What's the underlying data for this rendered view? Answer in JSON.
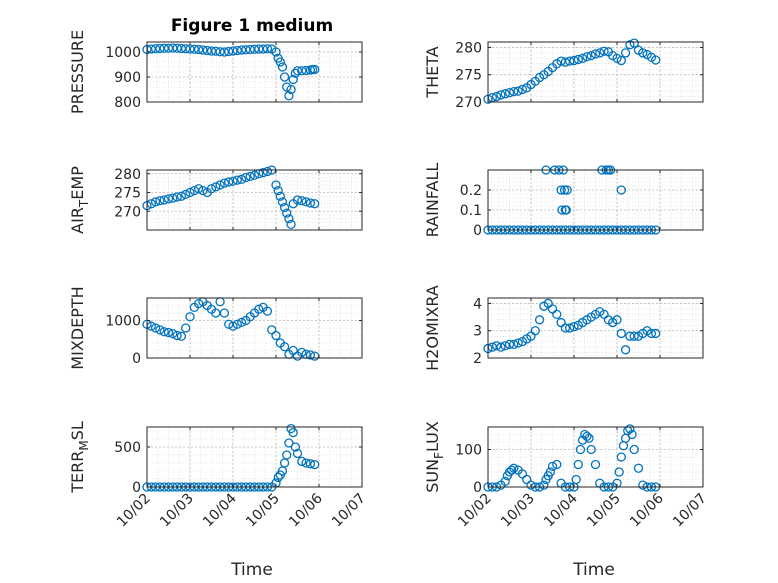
{
  "figure": {
    "title": "Figure 1 medium",
    "xlabel": "Time",
    "date_ticks": [
      "10/02",
      "10/03",
      "10/04",
      "10/05",
      "10/06",
      "10/07"
    ],
    "marker_color": "#0072BD"
  },
  "chart_data": [
    {
      "type": "scatter",
      "title": "Figure 1 medium",
      "ylabel": "PRESSURE",
      "ylabel_main": "PRESSURE",
      "ylabel_sub": "",
      "ylabel_tail": "",
      "xlim": [
        "10/02",
        "10/07"
      ],
      "ylim": [
        800,
        1040
      ],
      "yticks": [
        800,
        900,
        1000
      ],
      "grid": true,
      "x": [
        2.0,
        2.1,
        2.2,
        2.3,
        2.4,
        2.5,
        2.6,
        2.7,
        2.8,
        2.9,
        3.0,
        3.1,
        3.2,
        3.3,
        3.4,
        3.5,
        3.6,
        3.7,
        3.8,
        3.9,
        4.0,
        4.1,
        4.2,
        4.3,
        4.4,
        4.5,
        4.6,
        4.7,
        4.8,
        4.9,
        5.0,
        5.05,
        5.1,
        5.15,
        5.2,
        5.25,
        5.3,
        5.35,
        5.4,
        5.45,
        5.5,
        5.6,
        5.7,
        5.8,
        5.85,
        5.9
      ],
      "y": [
        1010,
        1012,
        1013,
        1014,
        1015,
        1015,
        1016,
        1015,
        1014,
        1013,
        1012,
        1011,
        1010,
        1008,
        1006,
        1004,
        1003,
        1001,
        1000,
        1002,
        1004,
        1006,
        1008,
        1009,
        1010,
        1011,
        1012,
        1012,
        1013,
        1012,
        1000,
        975,
        960,
        940,
        900,
        860,
        825,
        850,
        890,
        915,
        925,
        925,
        926,
        928,
        930,
        930
      ]
    },
    {
      "type": "scatter",
      "ylabel": "THETA",
      "ylabel_main": "THETA",
      "ylabel_sub": "",
      "ylabel_tail": "",
      "xlim": [
        "10/02",
        "10/07"
      ],
      "ylim": [
        270,
        281
      ],
      "yticks": [
        270,
        275,
        280
      ],
      "grid": true,
      "x": [
        2.0,
        2.1,
        2.2,
        2.3,
        2.4,
        2.5,
        2.6,
        2.7,
        2.8,
        2.9,
        3.0,
        3.1,
        3.2,
        3.3,
        3.4,
        3.5,
        3.6,
        3.7,
        3.8,
        3.9,
        4.0,
        4.1,
        4.2,
        4.3,
        4.4,
        4.5,
        4.6,
        4.7,
        4.8,
        4.9,
        5.0,
        5.1,
        5.2,
        5.3,
        5.4,
        5.5,
        5.6,
        5.7,
        5.8,
        5.9
      ],
      "y": [
        270.5,
        270.8,
        271.0,
        271.3,
        271.5,
        271.7,
        271.9,
        272.0,
        272.3,
        272.6,
        273.2,
        273.8,
        274.5,
        275.0,
        275.6,
        276.3,
        277.0,
        277.5,
        277.3,
        277.5,
        277.6,
        277.8,
        278.0,
        278.3,
        278.5,
        278.8,
        279.0,
        279.3,
        279.2,
        278.5,
        278.0,
        277.6,
        279.0,
        280.5,
        280.8,
        279.5,
        279.0,
        278.7,
        278.2,
        277.7
      ]
    },
    {
      "type": "scatter",
      "ylabel": "AIR_TEMP",
      "ylabel_main": "AIR",
      "ylabel_sub": "T",
      "ylabel_tail": "EMP",
      "xlim": [
        "10/02",
        "10/07"
      ],
      "ylim": [
        265,
        281
      ],
      "yticks": [
        270,
        275,
        280
      ],
      "grid": true,
      "x": [
        2.0,
        2.1,
        2.2,
        2.3,
        2.4,
        2.5,
        2.6,
        2.7,
        2.8,
        2.9,
        3.0,
        3.1,
        3.2,
        3.3,
        3.4,
        3.5,
        3.6,
        3.7,
        3.8,
        3.9,
        4.0,
        4.1,
        4.2,
        4.3,
        4.4,
        4.5,
        4.6,
        4.7,
        4.8,
        4.9,
        5.0,
        5.05,
        5.1,
        5.15,
        5.2,
        5.25,
        5.3,
        5.35,
        5.4,
        5.5,
        5.6,
        5.7,
        5.8,
        5.9
      ],
      "y": [
        271.5,
        272.0,
        272.5,
        272.8,
        273.0,
        273.3,
        273.5,
        273.8,
        274.0,
        274.5,
        275.0,
        275.5,
        276.0,
        275.5,
        275.0,
        276.0,
        276.5,
        277.0,
        277.5,
        277.8,
        278.0,
        278.3,
        278.5,
        279.0,
        279.3,
        279.6,
        280.0,
        280.3,
        280.6,
        281.0,
        277.0,
        275.5,
        274.0,
        272.5,
        271.0,
        269.5,
        268.0,
        266.5,
        272.0,
        273.0,
        272.8,
        272.5,
        272.2,
        272.0
      ]
    },
    {
      "type": "scatter",
      "ylabel": "RAINFALL",
      "ylabel_main": "RAINFALL",
      "ylabel_sub": "",
      "ylabel_tail": "",
      "xlim": [
        "10/02",
        "10/07"
      ],
      "ylim": [
        0,
        0.3
      ],
      "yticks": [
        0,
        0.1,
        0.2
      ],
      "grid": true,
      "x": [
        2.0,
        2.1,
        2.2,
        2.3,
        2.4,
        2.5,
        2.6,
        2.7,
        2.8,
        2.9,
        3.0,
        3.1,
        3.2,
        3.3,
        3.4,
        3.5,
        3.6,
        3.7,
        3.8,
        3.9,
        4.0,
        4.1,
        4.2,
        4.3,
        4.4,
        4.5,
        4.6,
        4.7,
        4.8,
        4.9,
        5.0,
        5.1,
        5.2,
        5.3,
        5.4,
        5.5,
        5.6,
        5.7,
        5.8,
        5.9,
        3.35,
        3.55,
        3.65,
        3.7,
        3.72,
        3.75,
        3.78,
        3.8,
        3.82,
        3.84,
        4.65,
        4.75,
        4.8,
        4.85,
        5.1
      ],
      "y": [
        0,
        0,
        0,
        0,
        0,
        0,
        0,
        0,
        0,
        0,
        0,
        0,
        0,
        0,
        0,
        0,
        0,
        0,
        0,
        0,
        0,
        0,
        0,
        0,
        0,
        0,
        0,
        0,
        0,
        0,
        0,
        0,
        0,
        0,
        0,
        0,
        0,
        0,
        0,
        0,
        0.3,
        0.3,
        0.3,
        0.2,
        0.1,
        0.3,
        0.2,
        0.1,
        0.1,
        0.2,
        0.3,
        0.3,
        0.3,
        0.3,
        0.2
      ]
    },
    {
      "type": "scatter",
      "ylabel": "MIXDEPTH",
      "ylabel_main": "MIXDEPTH",
      "ylabel_sub": "",
      "ylabel_tail": "",
      "xlim": [
        "10/02",
        "10/07"
      ],
      "ylim": [
        0,
        1600
      ],
      "yticks": [
        0,
        1000
      ],
      "grid": true,
      "x": [
        2.0,
        2.1,
        2.2,
        2.3,
        2.4,
        2.5,
        2.6,
        2.7,
        2.8,
        2.9,
        3.0,
        3.1,
        3.2,
        3.3,
        3.4,
        3.5,
        3.6,
        3.7,
        3.8,
        3.9,
        4.0,
        4.1,
        4.2,
        4.3,
        4.4,
        4.5,
        4.6,
        4.7,
        4.8,
        4.9,
        5.0,
        5.1,
        5.2,
        5.3,
        5.4,
        5.5,
        5.6,
        5.7,
        5.8,
        5.9
      ],
      "y": [
        900,
        850,
        800,
        750,
        700,
        680,
        650,
        600,
        580,
        800,
        1100,
        1350,
        1450,
        1500,
        1400,
        1300,
        1200,
        1500,
        1200,
        900,
        850,
        900,
        950,
        1000,
        1100,
        1200,
        1300,
        1350,
        1250,
        750,
        600,
        400,
        300,
        100,
        200,
        50,
        150,
        100,
        80,
        50
      ]
    },
    {
      "type": "scatter",
      "ylabel": "H2OMIXRA",
      "ylabel_main": "H2OMIXRA",
      "ylabel_sub": "",
      "ylabel_tail": "",
      "xlim": [
        "10/02",
        "10/07"
      ],
      "ylim": [
        2,
        4.2
      ],
      "yticks": [
        2,
        3,
        4
      ],
      "grid": true,
      "x": [
        2.0,
        2.1,
        2.2,
        2.3,
        2.4,
        2.5,
        2.6,
        2.7,
        2.8,
        2.9,
        3.0,
        3.1,
        3.2,
        3.3,
        3.4,
        3.5,
        3.6,
        3.7,
        3.8,
        3.9,
        4.0,
        4.1,
        4.2,
        4.3,
        4.4,
        4.5,
        4.6,
        4.7,
        4.8,
        4.9,
        5.0,
        5.1,
        5.2,
        5.3,
        5.4,
        5.5,
        5.6,
        5.7,
        5.8,
        5.9
      ],
      "y": [
        2.35,
        2.4,
        2.45,
        2.4,
        2.45,
        2.5,
        2.5,
        2.55,
        2.6,
        2.7,
        2.8,
        3.0,
        3.4,
        3.9,
        4.0,
        3.8,
        3.6,
        3.3,
        3.1,
        3.1,
        3.15,
        3.2,
        3.3,
        3.4,
        3.5,
        3.6,
        3.7,
        3.6,
        3.4,
        3.3,
        3.4,
        2.9,
        2.3,
        2.8,
        2.8,
        2.8,
        2.9,
        3.0,
        2.9,
        2.9
      ]
    },
    {
      "type": "scatter",
      "ylabel": "TERR_MSL",
      "ylabel_main": "TERR",
      "ylabel_sub": "M",
      "ylabel_tail": "SL",
      "xlim": [
        "10/02",
        "10/07"
      ],
      "ylim": [
        0,
        750
      ],
      "yticks": [
        0,
        500
      ],
      "grid": true,
      "x": [
        2.0,
        2.1,
        2.2,
        2.3,
        2.4,
        2.5,
        2.6,
        2.7,
        2.8,
        2.9,
        3.0,
        3.1,
        3.2,
        3.3,
        3.4,
        3.5,
        3.6,
        3.7,
        3.8,
        3.9,
        4.0,
        4.1,
        4.2,
        4.3,
        4.4,
        4.5,
        4.6,
        4.7,
        4.8,
        4.9,
        5.0,
        5.05,
        5.1,
        5.15,
        5.2,
        5.25,
        5.3,
        5.35,
        5.4,
        5.45,
        5.5,
        5.6,
        5.7,
        5.8,
        5.9
      ],
      "y": [
        0,
        0,
        0,
        0,
        0,
        0,
        0,
        0,
        0,
        0,
        0,
        0,
        0,
        0,
        0,
        0,
        0,
        0,
        0,
        0,
        0,
        0,
        0,
        0,
        0,
        0,
        0,
        0,
        0,
        0,
        50,
        120,
        150,
        200,
        300,
        400,
        550,
        730,
        680,
        500,
        420,
        320,
        300,
        290,
        280
      ]
    },
    {
      "type": "scatter",
      "ylabel": "SUN_FLUX",
      "ylabel_main": "SUN",
      "ylabel_sub": "F",
      "ylabel_tail": "LUX",
      "xlim": [
        "10/02",
        "10/07"
      ],
      "ylim": [
        0,
        160
      ],
      "yticks": [
        0,
        100
      ],
      "grid": true,
      "x": [
        2.0,
        2.1,
        2.2,
        2.3,
        2.4,
        2.45,
        2.5,
        2.55,
        2.6,
        2.7,
        2.8,
        2.9,
        3.0,
        3.1,
        3.2,
        3.3,
        3.35,
        3.4,
        3.45,
        3.5,
        3.6,
        3.7,
        3.8,
        3.9,
        4.0,
        4.05,
        4.1,
        4.15,
        4.2,
        4.25,
        4.3,
        4.35,
        4.4,
        4.5,
        4.6,
        4.7,
        4.8,
        4.9,
        5.0,
        5.05,
        5.1,
        5.15,
        5.2,
        5.25,
        5.3,
        5.35,
        5.4,
        5.5,
        5.6,
        5.7,
        5.8,
        5.9
      ],
      "y": [
        0,
        0,
        0,
        5,
        15,
        30,
        40,
        45,
        50,
        45,
        35,
        20,
        5,
        0,
        0,
        5,
        20,
        30,
        40,
        55,
        60,
        10,
        0,
        0,
        0,
        20,
        60,
        100,
        125,
        140,
        135,
        130,
        100,
        60,
        10,
        0,
        0,
        0,
        10,
        40,
        80,
        110,
        130,
        150,
        155,
        140,
        100,
        50,
        5,
        0,
        0,
        0
      ]
    }
  ]
}
